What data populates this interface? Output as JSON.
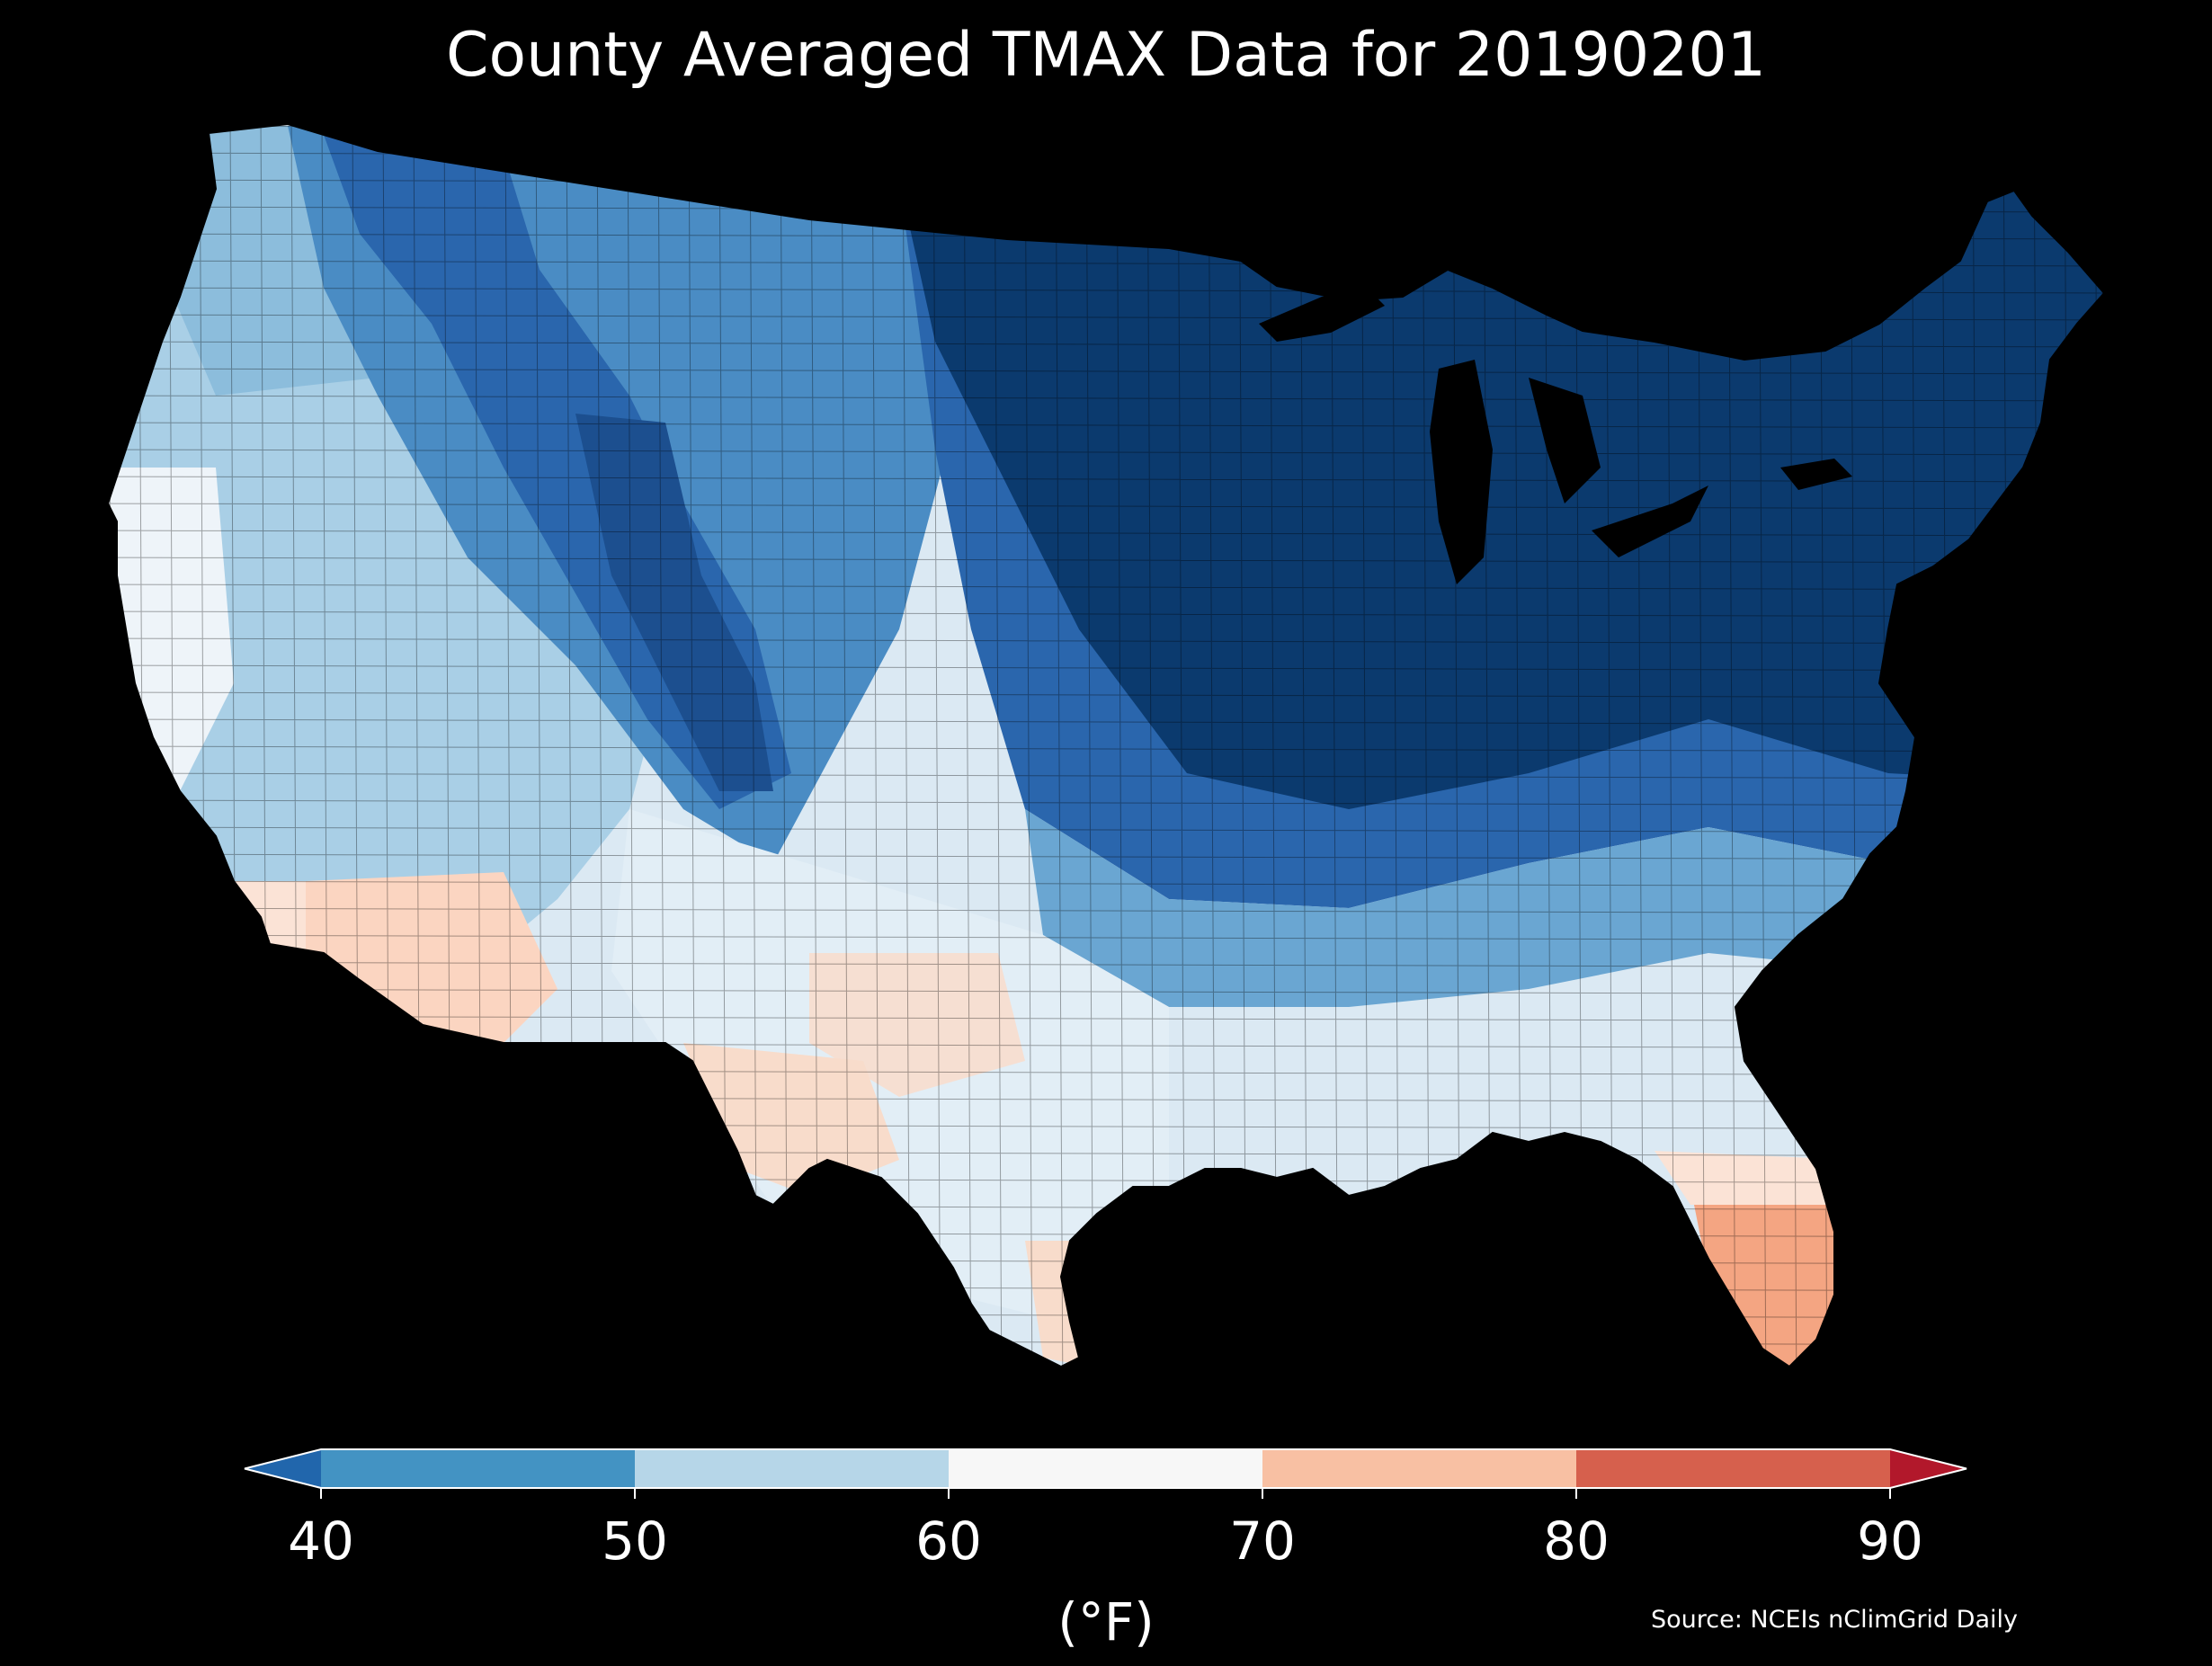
{
  "title": "County Averaged TMAX Data for 20190201",
  "source": "Source: NCEIs nClimGrid Daily",
  "colorbar": {
    "label": "(°F)",
    "ticks": [
      "40",
      "50",
      "60",
      "70",
      "80",
      "90"
    ],
    "bins": [
      {
        "range": "<40",
        "color": "#2166ac"
      },
      {
        "range": "40-50",
        "color": "#4393c3"
      },
      {
        "range": "50-60",
        "color": "#b6d6e8"
      },
      {
        "range": "60-70",
        "color": "#f7f7f7"
      },
      {
        "range": "70-80",
        "color": "#f8c0a3"
      },
      {
        "range": "80-90",
        "color": "#d6604d"
      },
      {
        "range": ">90",
        "color": "#b2182b"
      }
    ]
  },
  "map": {
    "background": "#000000",
    "regions": [
      {
        "name": "Northeast and Great Lakes",
        "color": "#0b3a6e"
      },
      {
        "name": "Northern Rockies",
        "color": "#2a66ad"
      },
      {
        "name": "Pacific Northwest",
        "color": "#8cbddc"
      },
      {
        "name": "Great Basin",
        "color": "#a9cfe6"
      },
      {
        "name": "Southern Plains",
        "color": "#e2eef6"
      },
      {
        "name": "Southeast",
        "color": "#dbe9f3"
      },
      {
        "name": "Desert Southwest",
        "color": "#fbd5c1"
      },
      {
        "name": "Southern Florida",
        "color": "#f4a582"
      }
    ]
  }
}
